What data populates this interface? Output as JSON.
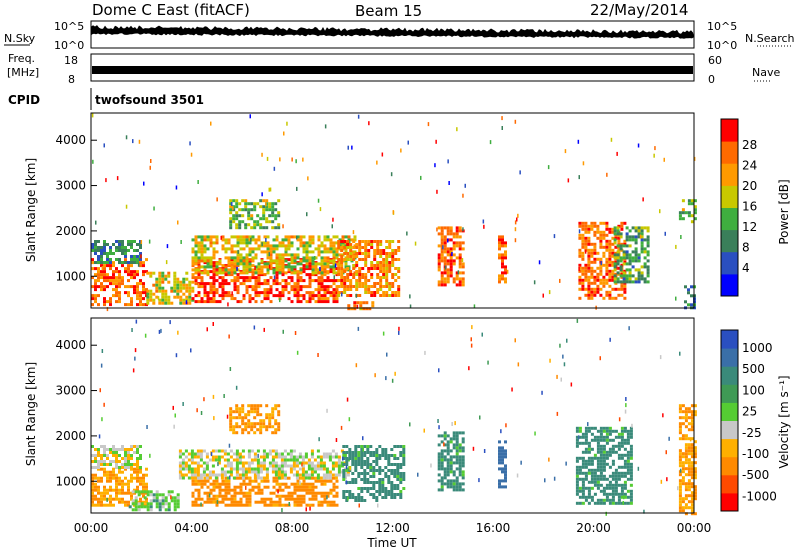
{
  "header": {
    "title": "Dome C East (fitACF)",
    "beam": "Beam 15",
    "date": "22/May/2014"
  },
  "strips": {
    "nsky": {
      "label": "N.Sky",
      "left_ticks": [
        "10^5",
        "10^0"
      ],
      "right_ticks": [
        "10^5",
        "10^0"
      ],
      "right_label": "N.Search"
    },
    "freq": {
      "label_line1": "Freq.",
      "label_line2": "[MHz]",
      "left_ticks": [
        "18",
        "8"
      ],
      "right_ticks": [
        "60",
        "0"
      ],
      "right_label": "Nave"
    },
    "cpid": {
      "label": "CPID",
      "value": "twofsound 3501"
    }
  },
  "x_ticks": [
    "00:00",
    "04:00",
    "08:00",
    "12:00",
    "16:00",
    "20:00",
    "00:00"
  ],
  "x_label": "Time UT",
  "colors": {
    "power_scale": [
      "#0000ff",
      "#2a4fc0",
      "#3a7f5a",
      "#3fae3f",
      "#c8c800",
      "#ff9a00",
      "#ff6a00",
      "#ff0000"
    ],
    "velocity_scale": [
      "#ff0000",
      "#ff4a00",
      "#ff8a00",
      "#ffb000",
      "#c8c8c8",
      "#55cc33",
      "#3f9a55",
      "#3a8a7a",
      "#3a6fa8",
      "#2a4fc0"
    ]
  },
  "chart_data": [
    {
      "type": "heatmap",
      "panel": "power",
      "xlabel": "",
      "ylabel": "Slant Range [km]",
      "x_range_ut_hours": [
        0,
        24
      ],
      "ylim": [
        300,
        4600
      ],
      "y_ticks": [
        "4000",
        "3000",
        "2000",
        "1000"
      ],
      "colorbar": {
        "label": "Power [dB]",
        "ticks": [
          "28",
          "24",
          "20",
          "16",
          "12",
          "8",
          "4"
        ],
        "range": [
          0,
          30
        ]
      },
      "regions": [
        {
          "t0": 0.0,
          "t1": 2.2,
          "r0": 400,
          "r1": 1400,
          "value": 24
        },
        {
          "t0": 0.0,
          "t1": 2.0,
          "r0": 1300,
          "r1": 1800,
          "value": 10
        },
        {
          "t0": 2.2,
          "t1": 4.0,
          "r0": 400,
          "r1": 1100,
          "value": 18
        },
        {
          "t0": 4.0,
          "t1": 9.8,
          "r0": 450,
          "r1": 1400,
          "value": 26
        },
        {
          "t0": 4.0,
          "t1": 10.5,
          "r0": 1100,
          "r1": 1900,
          "value": 18
        },
        {
          "t0": 5.5,
          "t1": 7.5,
          "r0": 2100,
          "r1": 2700,
          "value": 14
        },
        {
          "t0": 9.8,
          "t1": 12.3,
          "r0": 600,
          "r1": 1800,
          "value": 22
        },
        {
          "t0": 10.2,
          "t1": 11.2,
          "r0": 300,
          "r1": 450,
          "value": 22
        },
        {
          "t0": 13.8,
          "t1": 14.8,
          "r0": 800,
          "r1": 2100,
          "value": 24
        },
        {
          "t0": 16.2,
          "t1": 16.5,
          "r0": 900,
          "r1": 1900,
          "value": 24
        },
        {
          "t0": 19.4,
          "t1": 21.2,
          "r0": 500,
          "r1": 2200,
          "value": 24
        },
        {
          "t0": 20.8,
          "t1": 22.2,
          "r0": 900,
          "r1": 2100,
          "value": 12
        },
        {
          "t0": 23.4,
          "t1": 24.0,
          "r0": 2200,
          "r1": 2700,
          "value": 14
        },
        {
          "t0": 23.6,
          "t1": 24.0,
          "r0": 300,
          "r1": 800,
          "value": 10
        }
      ]
    },
    {
      "type": "heatmap",
      "panel": "velocity",
      "xlabel": "Time UT",
      "ylabel": "Slant Range [km]",
      "x_range_ut_hours": [
        0,
        24
      ],
      "ylim": [
        300,
        4600
      ],
      "y_ticks": [
        "4000",
        "3000",
        "2000",
        "1000"
      ],
      "colorbar": {
        "label": "Velocity [m s⁻¹]",
        "ticks": [
          "1000",
          "500",
          "100",
          "25",
          "-25",
          "-100",
          "-500",
          "-1000"
        ],
        "range": [
          -1000,
          1000
        ]
      },
      "regions": [
        {
          "t0": 0.0,
          "t1": 2.2,
          "r0": 500,
          "r1": 1300,
          "value": -100
        },
        {
          "t0": 0.0,
          "t1": 2.0,
          "r0": 1300,
          "r1": 1800,
          "value": 0
        },
        {
          "t0": 1.5,
          "t1": 3.5,
          "r0": 350,
          "r1": 800,
          "value": 60
        },
        {
          "t0": 4.0,
          "t1": 9.8,
          "r0": 450,
          "r1": 1100,
          "value": -150
        },
        {
          "t0": 3.5,
          "t1": 10.2,
          "r0": 1100,
          "r1": 1700,
          "value": 0
        },
        {
          "t0": 5.5,
          "t1": 7.5,
          "r0": 2100,
          "r1": 2700,
          "value": -100
        },
        {
          "t0": 10.0,
          "t1": 12.5,
          "r0": 600,
          "r1": 1800,
          "value": 150
        },
        {
          "t0": 13.8,
          "t1": 14.8,
          "r0": 800,
          "r1": 2100,
          "value": 150
        },
        {
          "t0": 16.2,
          "t1": 16.5,
          "r0": 900,
          "r1": 1900,
          "value": 600
        },
        {
          "t0": 19.3,
          "t1": 21.5,
          "r0": 500,
          "r1": 2200,
          "value": 150
        },
        {
          "t0": 23.4,
          "t1": 24.0,
          "r0": 300,
          "r1": 2700,
          "value": -100
        }
      ]
    }
  ]
}
